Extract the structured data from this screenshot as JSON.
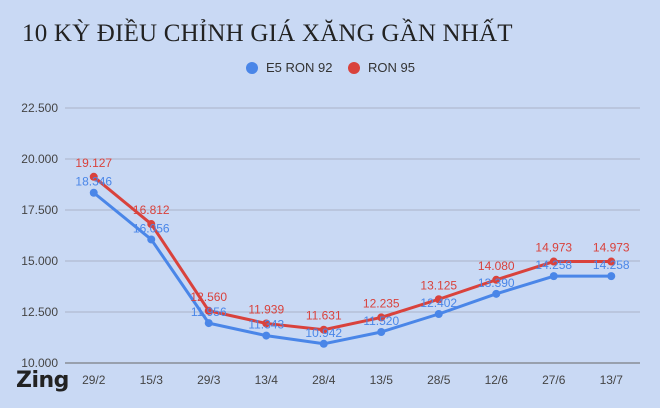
{
  "chart_data": {
    "type": "line",
    "title": "10 KỲ ĐIỀU CHỈNH GIÁ XĂNG GẦN NHẤT",
    "categories": [
      "29/2",
      "15/3",
      "29/3",
      "13/4",
      "28/4",
      "13/5",
      "28/5",
      "12/6",
      "27/6",
      "13/7"
    ],
    "series": [
      {
        "name": "E5 RON 92",
        "color": "#4a86e8",
        "values": [
          18346,
          16056,
          11956,
          11343,
          10942,
          11520,
          12402,
          13390,
          14258,
          14258
        ],
        "labels": [
          "18.346",
          "16.056",
          "11.956",
          "11.343",
          "10.942",
          "11.520",
          "12.402",
          "13.390",
          "14.258",
          "14.258"
        ]
      },
      {
        "name": "RON 95",
        "color": "#d9423c",
        "values": [
          19127,
          16812,
          12560,
          11939,
          11631,
          12235,
          13125,
          14080,
          14973,
          14973
        ],
        "labels": [
          "19.127",
          "16.812",
          "12.560",
          "11.939",
          "11.631",
          "12.235",
          "13.125",
          "14.080",
          "14.973",
          "14.973"
        ]
      }
    ],
    "ylim": [
      10000,
      22500
    ],
    "yticks": [
      10000,
      12500,
      15000,
      17500,
      20000,
      22500
    ],
    "ytick_labels": [
      "10.000",
      "12.500",
      "15.000",
      "17.500",
      "20.000",
      "22.500"
    ],
    "legend_position": "top-center",
    "grid": true
  },
  "brand": {
    "logo_text": "Zing"
  }
}
